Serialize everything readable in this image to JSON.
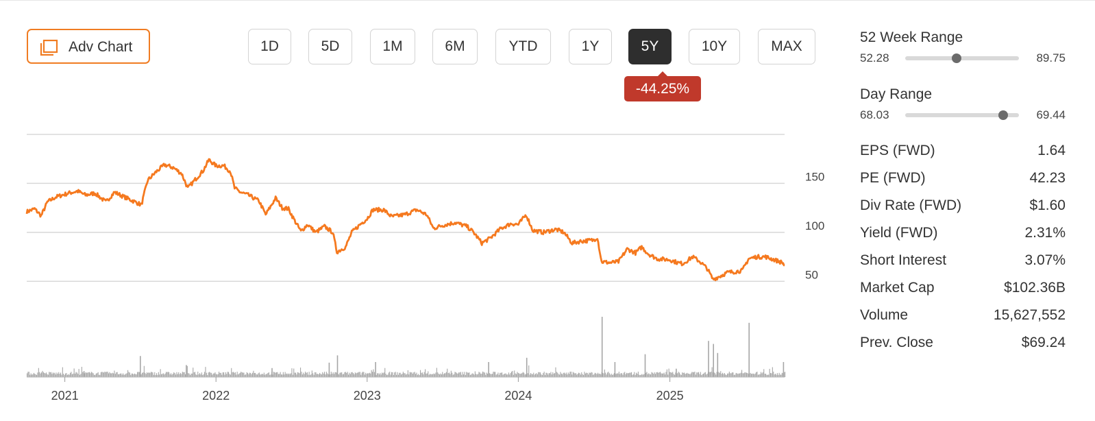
{
  "toolbar": {
    "adv_chart_label": "Adv Chart",
    "periods": [
      "1D",
      "5D",
      "1M",
      "6M",
      "YTD",
      "1Y",
      "5Y",
      "10Y",
      "MAX"
    ],
    "active_period": "5Y",
    "change_badge": "-44.25%",
    "badge_color": "#c0392b",
    "accent_color": "#f07c22"
  },
  "chart_data": {
    "type": "line",
    "series": [
      {
        "color": "#f5791f",
        "points": [
          [
            "2020-10-01",
            121
          ],
          [
            "2020-10-20",
            124
          ],
          [
            "2020-11-05",
            117
          ],
          [
            "2020-11-20",
            131
          ],
          [
            "2020-12-10",
            136
          ],
          [
            "2021-01-10",
            140
          ],
          [
            "2021-02-01",
            142
          ],
          [
            "2021-02-20",
            138
          ],
          [
            "2021-03-15",
            140
          ],
          [
            "2021-04-10",
            131
          ],
          [
            "2021-05-01",
            141
          ],
          [
            "2021-05-25",
            136
          ],
          [
            "2021-06-15",
            132
          ],
          [
            "2021-07-05",
            128
          ],
          [
            "2021-07-20",
            153
          ],
          [
            "2021-08-10",
            162
          ],
          [
            "2021-08-30",
            169
          ],
          [
            "2021-09-20",
            166
          ],
          [
            "2021-10-10",
            160
          ],
          [
            "2021-10-25",
            145
          ],
          [
            "2021-11-10",
            153
          ],
          [
            "2021-12-01",
            163
          ],
          [
            "2021-12-15",
            174
          ],
          [
            "2022-01-01",
            168
          ],
          [
            "2022-01-20",
            168
          ],
          [
            "2022-02-05",
            162
          ],
          [
            "2022-02-15",
            145
          ],
          [
            "2022-03-01",
            141
          ],
          [
            "2022-03-20",
            138
          ],
          [
            "2022-04-15",
            132
          ],
          [
            "2022-05-01",
            118
          ],
          [
            "2022-05-25",
            135
          ],
          [
            "2022-06-10",
            125
          ],
          [
            "2022-06-25",
            124
          ],
          [
            "2022-07-10",
            112
          ],
          [
            "2022-07-25",
            101
          ],
          [
            "2022-08-10",
            108
          ],
          [
            "2022-08-30",
            100
          ],
          [
            "2022-09-20",
            106
          ],
          [
            "2022-10-10",
            100
          ],
          [
            "2022-10-20",
            80
          ],
          [
            "2022-11-10",
            85
          ],
          [
            "2022-11-25",
            100
          ],
          [
            "2022-12-15",
            108
          ],
          [
            "2023-01-01",
            114
          ],
          [
            "2023-01-15",
            123
          ],
          [
            "2023-02-10",
            123
          ],
          [
            "2023-03-01",
            116
          ],
          [
            "2023-04-01",
            118
          ],
          [
            "2023-05-01",
            123
          ],
          [
            "2023-05-25",
            118
          ],
          [
            "2023-06-10",
            104
          ],
          [
            "2023-07-01",
            107
          ],
          [
            "2023-08-01",
            110
          ],
          [
            "2023-08-30",
            106
          ],
          [
            "2023-09-15",
            100
          ],
          [
            "2023-10-05",
            89
          ],
          [
            "2023-10-25",
            94
          ],
          [
            "2023-11-20",
            104
          ],
          [
            "2023-12-15",
            109
          ],
          [
            "2024-01-01",
            108
          ],
          [
            "2024-01-20",
            118
          ],
          [
            "2024-02-05",
            102
          ],
          [
            "2024-03-01",
            100
          ],
          [
            "2024-04-01",
            103
          ],
          [
            "2024-04-20",
            100
          ],
          [
            "2024-05-10",
            89
          ],
          [
            "2024-06-01",
            91
          ],
          [
            "2024-06-30",
            92
          ],
          [
            "2024-07-10",
            95
          ],
          [
            "2024-07-20",
            70
          ],
          [
            "2024-08-10",
            69
          ],
          [
            "2024-08-30",
            70
          ],
          [
            "2024-09-20",
            83
          ],
          [
            "2024-10-10",
            79
          ],
          [
            "2024-10-25",
            85
          ],
          [
            "2024-11-10",
            78
          ],
          [
            "2024-12-01",
            73
          ],
          [
            "2025-01-01",
            72
          ],
          [
            "2025-01-20",
            69
          ],
          [
            "2025-02-01",
            68
          ],
          [
            "2025-02-25",
            75
          ],
          [
            "2025-03-15",
            70
          ],
          [
            "2025-04-01",
            63
          ],
          [
            "2025-04-15",
            52
          ],
          [
            "2025-05-01",
            55
          ],
          [
            "2025-05-20",
            59
          ],
          [
            "2025-06-10",
            60
          ],
          [
            "2025-06-25",
            61
          ],
          [
            "2025-07-10",
            73
          ],
          [
            "2025-07-30",
            75
          ],
          [
            "2025-08-20",
            75
          ],
          [
            "2025-09-10",
            72
          ],
          [
            "2025-09-30",
            69
          ],
          [
            "2025-10-05",
            66
          ]
        ]
      }
    ],
    "volume": {
      "color": "#a6a6a6",
      "spikes": [
        [
          "2021-02-15",
          0.1
        ],
        [
          "2021-07-01",
          0.35
        ],
        [
          "2021-10-20",
          0.2
        ],
        [
          "2022-05-15",
          0.15
        ],
        [
          "2022-09-30",
          0.24
        ],
        [
          "2022-10-20",
          0.36
        ],
        [
          "2023-01-20",
          0.25
        ],
        [
          "2023-10-20",
          0.25
        ],
        [
          "2024-01-20",
          0.32
        ],
        [
          "2024-07-20",
          1.0
        ],
        [
          "2024-08-20",
          0.25
        ],
        [
          "2024-11-01",
          0.38
        ],
        [
          "2025-01-15",
          0.14
        ],
        [
          "2025-04-03",
          0.6
        ],
        [
          "2025-04-15",
          0.55
        ],
        [
          "2025-04-25",
          0.4
        ],
        [
          "2025-07-10",
          0.9
        ],
        [
          "2025-10-01",
          0.25
        ]
      ]
    },
    "y_ticks": [
      50,
      100,
      150
    ],
    "ylim": [
      25,
      200
    ],
    "x_ticks": [
      "2021",
      "2022",
      "2023",
      "2024",
      "2025"
    ],
    "x_range": [
      "2020-10-01",
      "2025-10-05"
    ],
    "grid": true
  },
  "stats": {
    "week52": {
      "title": "52 Week Range",
      "low": "52.28",
      "high": "89.75",
      "position": 0.45
    },
    "day": {
      "title": "Day Range",
      "low": "68.03",
      "high": "69.44",
      "position": 0.86
    },
    "rows": [
      {
        "label": "EPS (FWD)",
        "value": "1.64"
      },
      {
        "label": "PE (FWD)",
        "value": "42.23"
      },
      {
        "label": "Div Rate (FWD)",
        "value": "$1.60"
      },
      {
        "label": "Yield (FWD)",
        "value": "2.31%"
      },
      {
        "label": "Short Interest",
        "value": "3.07%"
      },
      {
        "label": "Market Cap",
        "value": "$102.36B"
      },
      {
        "label": "Volume",
        "value": "15,627,552"
      },
      {
        "label": "Prev. Close",
        "value": "$69.24"
      }
    ]
  }
}
